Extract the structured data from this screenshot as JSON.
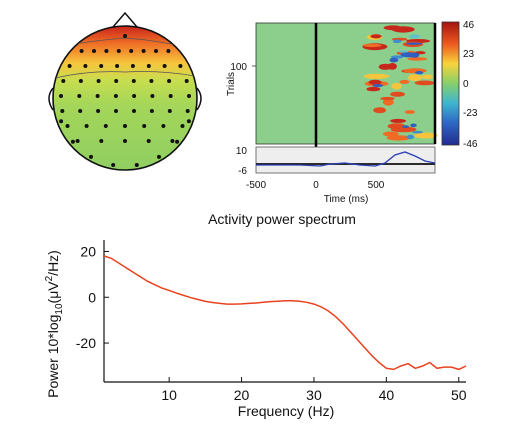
{
  "topomap": {
    "electrode_rows": [
      1,
      8,
      8,
      8,
      8,
      8,
      7,
      5
    ],
    "colormap": [
      "#2a2fa0",
      "#2d8fd0",
      "#63c9a8",
      "#b9dd52",
      "#f6d23c",
      "#ee6f24",
      "#c01b17"
    ]
  },
  "erp_image": {
    "ylabel": "Trials",
    "xlabel": "Time (ms)",
    "y_tick": "100",
    "x_ticks": [
      "-500",
      "0",
      "500"
    ],
    "colorbar_ticks": [
      "46",
      "23",
      "0",
      "-23",
      "-46"
    ],
    "erp_ticks": [
      "10",
      "-6"
    ]
  },
  "chart_data": {
    "type": "line",
    "title": "Activity power spectrum",
    "xlabel": "Frequency (Hz)",
    "ylabel_main": "Power 10*log",
    "ylabel_sub": "10",
    "ylabel_tail": "(μV",
    "ylabel_sup": "2",
    "ylabel_end": "/Hz)",
    "xlim": [
      1,
      51
    ],
    "ylim": [
      -37,
      25
    ],
    "x_ticks": [
      10,
      20,
      30,
      40,
      50
    ],
    "y_ticks": [
      20,
      0,
      -20
    ],
    "x_tick_labels": [
      "10",
      "20",
      "30",
      "40",
      "50"
    ],
    "y_tick_labels": [
      "20",
      "0",
      "-20"
    ],
    "color": "#e8421f",
    "series": [
      {
        "x": [
          1,
          2,
          3,
          4,
          5,
          6,
          7,
          8,
          9,
          10,
          11,
          12,
          13,
          14,
          15,
          16,
          17,
          18,
          19,
          20,
          21,
          22,
          23,
          24,
          25,
          26,
          27,
          28,
          29,
          30,
          31,
          32,
          33,
          34,
          35,
          36,
          37,
          38,
          39,
          40,
          41,
          42,
          43,
          44,
          45,
          46,
          47,
          48,
          49,
          50,
          51
        ],
        "y": [
          18,
          17,
          15,
          13,
          11,
          9,
          7,
          5.5,
          4,
          3,
          1.8,
          0.8,
          -0.2,
          -1,
          -1.8,
          -2.3,
          -2.7,
          -3,
          -3,
          -2.9,
          -2.7,
          -2.5,
          -2.2,
          -1.9,
          -1.7,
          -1.5,
          -1.5,
          -1.7,
          -2.2,
          -3,
          -4.2,
          -6,
          -8.5,
          -11.5,
          -15,
          -18.5,
          -22,
          -25.5,
          -28.5,
          -31,
          -31.5,
          -30,
          -29,
          -31,
          -30,
          -28.5,
          -31,
          -30.5,
          -30.5,
          -31.5,
          -30
        ]
      }
    ]
  }
}
